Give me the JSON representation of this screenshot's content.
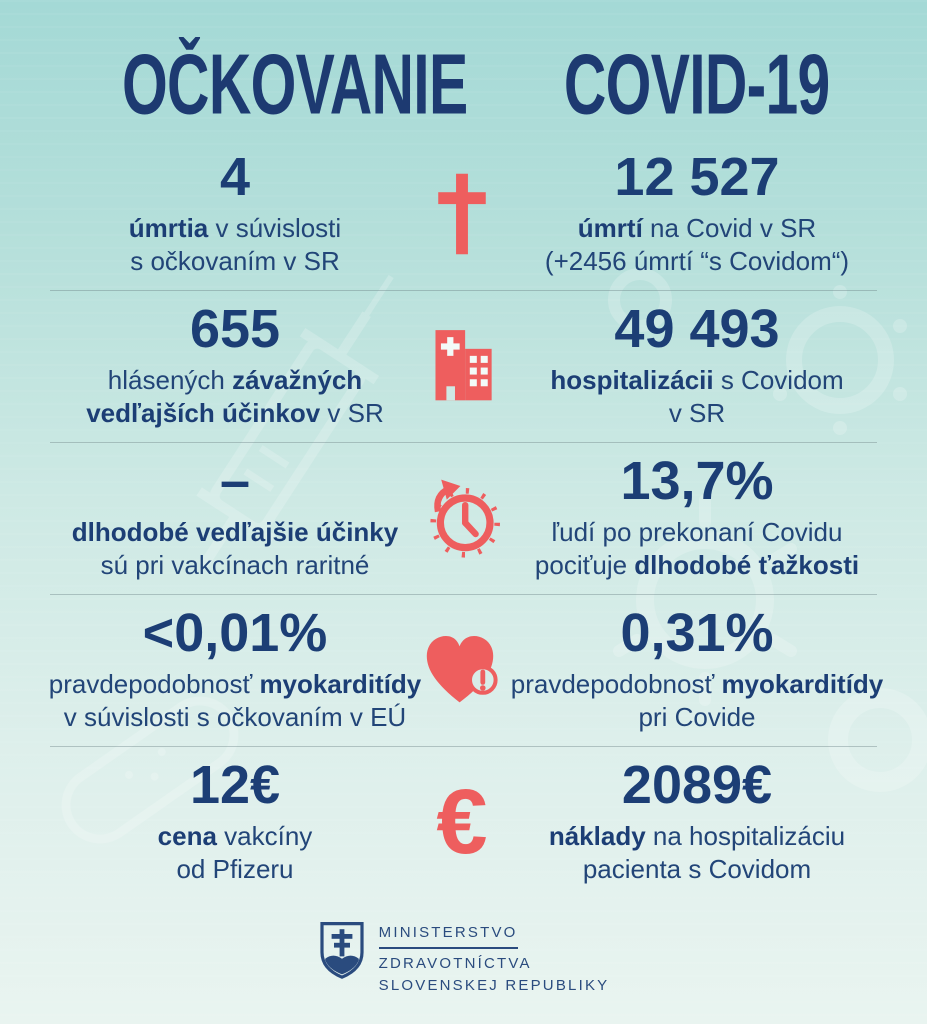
{
  "header": {
    "title_left": "OČKOVANIE",
    "title_right": "COVID-19"
  },
  "colors": {
    "navy_text": "#1c3e75",
    "accent_red": "#ee5e5e",
    "background_top": "#a4d9d6",
    "background_bottom": "#e9f4f0",
    "divider": "rgba(100,120,126,0.38)"
  },
  "rows": [
    {
      "name": "row-deaths",
      "icon": "cross-icon",
      "left": {
        "value": "4",
        "lines": [
          [
            {
              "t": "úmrtia",
              "b": true
            },
            {
              "t": " v súvislosti",
              "b": false
            }
          ],
          [
            {
              "t": "s očkovaním v SR",
              "b": false
            }
          ]
        ]
      },
      "right": {
        "value": "12 527",
        "lines": [
          [
            {
              "t": "úmrtí",
              "b": true
            },
            {
              "t": " na Covid v SR",
              "b": false
            }
          ],
          [
            {
              "t": "(+2456 úmrtí “s Covidom“)",
              "b": false
            }
          ]
        ]
      }
    },
    {
      "name": "row-side-effects",
      "icon": "hospital-icon",
      "left": {
        "value": "655",
        "lines": [
          [
            {
              "t": "hlásených ",
              "b": false
            },
            {
              "t": "závažných",
              "b": true
            }
          ],
          [
            {
              "t": "vedľajších účinkov",
              "b": true
            },
            {
              "t": " v SR",
              "b": false
            }
          ]
        ]
      },
      "right": {
        "value": "49 493",
        "lines": [
          [
            {
              "t": "hospitalizácii",
              "b": true
            },
            {
              "t": " s Covidom",
              "b": false
            }
          ],
          [
            {
              "t": "v SR",
              "b": false
            }
          ]
        ]
      }
    },
    {
      "name": "row-long-term-effects",
      "icon": "clock-icon",
      "left": {
        "value": "–",
        "lines": [
          [
            {
              "t": "dlhodobé vedľajšie účinky",
              "b": true
            }
          ],
          [
            {
              "t": "sú pri vakcínach raritné",
              "b": false
            }
          ]
        ]
      },
      "right": {
        "value": "13,7%",
        "lines": [
          [
            {
              "t": "ľudí po prekonaní Covidu",
              "b": false
            }
          ],
          [
            {
              "t": "pociťuje ",
              "b": false
            },
            {
              "t": "dlhodobé ťažkosti",
              "b": true
            }
          ]
        ]
      }
    },
    {
      "name": "row-myocarditis",
      "icon": "heart-alert-icon",
      "left": {
        "value": "<0,01%",
        "lines": [
          [
            {
              "t": "pravdepodobnosť ",
              "b": false
            },
            {
              "t": "myokarditídy",
              "b": true
            }
          ],
          [
            {
              "t": "v súvislosti s očkovaním v EÚ",
              "b": false
            }
          ]
        ]
      },
      "right": {
        "value": "0,31%",
        "lines": [
          [
            {
              "t": "pravdepodobnosť ",
              "b": false
            },
            {
              "t": "myokarditídy",
              "b": true
            }
          ],
          [
            {
              "t": "pri Covide",
              "b": false
            }
          ]
        ]
      }
    },
    {
      "name": "row-cost",
      "icon": "euro-icon",
      "left": {
        "value": "12€",
        "lines": [
          [
            {
              "t": "cena",
              "b": true
            },
            {
              "t": " vakcíny",
              "b": false
            }
          ],
          [
            {
              "t": "od Pfizeru",
              "b": false
            }
          ]
        ]
      },
      "right": {
        "value": "2089€",
        "lines": [
          [
            {
              "t": "náklady",
              "b": true
            },
            {
              "t": " na hospitalizáciu",
              "b": false
            }
          ],
          [
            {
              "t": "pacienta s Covidom",
              "b": false
            }
          ]
        ]
      }
    }
  ],
  "footer": {
    "line1": "MINISTERSTVO",
    "line2": "ZDRAVOTNÍCTVA",
    "line3": "SLOVENSKEJ REPUBLIKY"
  }
}
